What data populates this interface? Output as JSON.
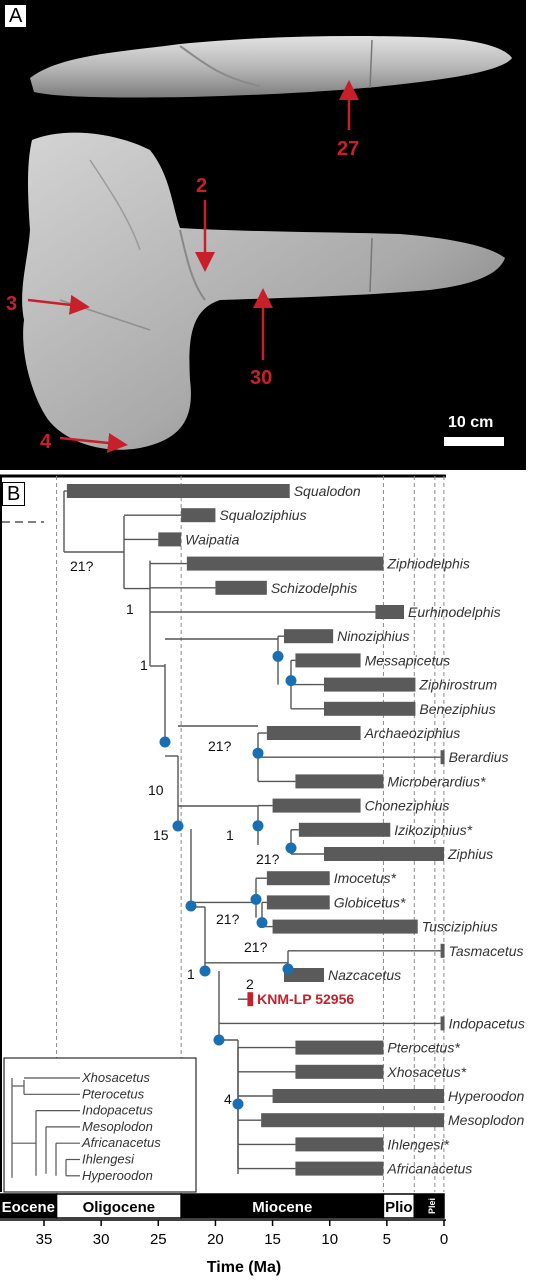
{
  "panel_a": {
    "label": "A",
    "annotations": [
      "27",
      "2",
      "3",
      "30",
      "4"
    ],
    "scale_bar": "10 cm",
    "colors": {
      "arrow": "#c8202a",
      "bone": "#bdbdbd",
      "background": "#000000"
    }
  },
  "panel_b": {
    "label": "B",
    "taxa": [
      {
        "name": "Squalodon",
        "start": 33,
        "end": 13.5
      },
      {
        "name": "Squaloziphius",
        "start": 23,
        "end": 20
      },
      {
        "name": "Waipatia",
        "start": 25,
        "end": 23
      },
      {
        "name": "Ziphiodelphis",
        "start": 22.5,
        "end": 5.3
      },
      {
        "name": "Schizodelphis",
        "start": 20,
        "end": 15.5
      },
      {
        "name": "Eurhinodelphis",
        "start": 6,
        "end": 3.5
      },
      {
        "name": "Ninoziphius",
        "start": 14,
        "end": 9.7
      },
      {
        "name": "Messapicetus",
        "start": 13,
        "end": 7.3
      },
      {
        "name": "Ziphirostrum",
        "start": 10.5,
        "end": 2.5
      },
      {
        "name": "Beneziphius",
        "start": 10.5,
        "end": 2.5
      },
      {
        "name": "Archaeoziphius",
        "start": 15.5,
        "end": 7.3
      },
      {
        "name": "Berardius",
        "start": 0.3,
        "end": 0
      },
      {
        "name": "Microberardius*",
        "start": 13,
        "end": 5.3
      },
      {
        "name": "Choneziphius",
        "start": 15,
        "end": 7.3
      },
      {
        "name": "Izikoziphius*",
        "start": 12.7,
        "end": 4.7
      },
      {
        "name": "Ziphius",
        "start": 10.5,
        "end": 0
      },
      {
        "name": "Imocetus*",
        "start": 15.5,
        "end": 10
      },
      {
        "name": "Globicetus*",
        "start": 15.5,
        "end": 10
      },
      {
        "name": "Tusciziphius",
        "start": 15,
        "end": 2.3
      },
      {
        "name": "Tasmacetus",
        "start": 0.3,
        "end": 0
      },
      {
        "name": "Nazcacetus",
        "start": 14,
        "end": 10.5
      },
      {
        "name": "KNM-LP 52956",
        "start": 17.2,
        "end": 16.7,
        "highlight": true
      },
      {
        "name": "Indopacetus",
        "start": 0.3,
        "end": 0
      },
      {
        "name": "Pterocetus*",
        "start": 13,
        "end": 5.3
      },
      {
        "name": "Xhosacetus*",
        "start": 13,
        "end": 5.3
      },
      {
        "name": "Hyperoodon",
        "start": 15,
        "end": 0
      },
      {
        "name": "Mesoplodon",
        "start": 16,
        "end": 0
      },
      {
        "name": "Ihlengesi*",
        "start": 13,
        "end": 5.3
      },
      {
        "name": "Africanacetus",
        "start": 13,
        "end": 5.3
      }
    ],
    "node_labels": [
      "21?",
      "1",
      "1",
      "10",
      "21?",
      "15",
      "1",
      "21?",
      "21?",
      "21?",
      "1",
      "2",
      "4"
    ],
    "inset_taxa": [
      "Xhosacetus",
      "Pterocetus",
      "Indopacetus",
      "Mesoplodon",
      "Africanacetus",
      "Ihlengesi",
      "Hyperoodon"
    ],
    "epochs": [
      {
        "name": "Eocene",
        "style": "dark"
      },
      {
        "name": "Oligocene",
        "style": "light"
      },
      {
        "name": "Miocene",
        "style": "dark"
      },
      {
        "name": "Plio",
        "style": "light"
      },
      {
        "name": "Plei",
        "style": "dark"
      }
    ],
    "epoch_boundaries": [
      33.9,
      23.0,
      5.3,
      2.6,
      0.01
    ],
    "x_ticks": [
      "35",
      "30",
      "25",
      "20",
      "15",
      "10",
      "5",
      "0"
    ],
    "x_label": "Time (Ma)",
    "colors": {
      "bar": "#5a5a5a",
      "highlight": "#c8202a",
      "node": "#1a6fb3",
      "line": "#555555"
    }
  }
}
